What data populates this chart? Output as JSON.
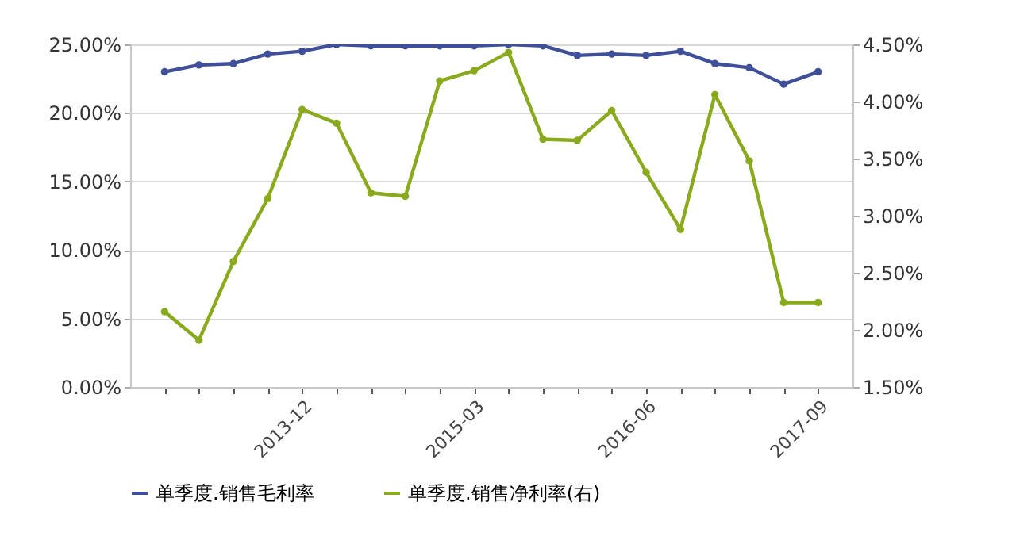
{
  "chart_data": {
    "type": "line",
    "categories": [
      null,
      null,
      null,
      null,
      "2013-12",
      null,
      null,
      null,
      null,
      "2015-03",
      null,
      null,
      null,
      null,
      "2016-06",
      null,
      null,
      null,
      null,
      "2017-09"
    ],
    "series": [
      {
        "name": "单季度.销售毛利率",
        "color": "#3f4f9a",
        "values": [
          23.0,
          23.5,
          23.6,
          24.3,
          24.5,
          25.0,
          24.9,
          24.9,
          24.9,
          24.9,
          25.0,
          24.9,
          24.2,
          24.3,
          24.2,
          24.5,
          23.6,
          23.3,
          22.1,
          23.0
        ]
      },
      {
        "name": "单季度.销售净利率(右)",
        "color": "#8aaa1e",
        "axis": "y2",
        "values": [
          2.16,
          1.91,
          2.6,
          3.15,
          3.93,
          3.81,
          3.2,
          3.17,
          4.18,
          4.27,
          4.43,
          3.67,
          3.66,
          3.92,
          3.38,
          2.88,
          4.06,
          3.48,
          2.24,
          2.24
        ]
      }
    ],
    "ylim": [
      0,
      25
    ],
    "yticks": [
      {
        "value": 0,
        "label": "0.00%"
      },
      {
        "value": 5,
        "label": "5.00%"
      },
      {
        "value": 10,
        "label": "10.00%"
      },
      {
        "value": 15,
        "label": "15.00%"
      },
      {
        "value": 20,
        "label": "20.00%"
      },
      {
        "value": 25,
        "label": "25.00%"
      }
    ],
    "y2lim": [
      1.5,
      4.5
    ],
    "y2ticks": [
      {
        "value": 1.5,
        "label": "1.50%"
      },
      {
        "value": 2,
        "label": "2.00%"
      },
      {
        "value": 2.5,
        "label": "2.50%"
      },
      {
        "value": 3,
        "label": "3.00%"
      },
      {
        "value": 3.5,
        "label": "3.50%"
      },
      {
        "value": 4,
        "label": "4.00%"
      },
      {
        "value": 4.5,
        "label": "4.50%"
      }
    ],
    "grid": "y",
    "legend": "bottom",
    "marker": "circle",
    "line_style": "solid"
  }
}
